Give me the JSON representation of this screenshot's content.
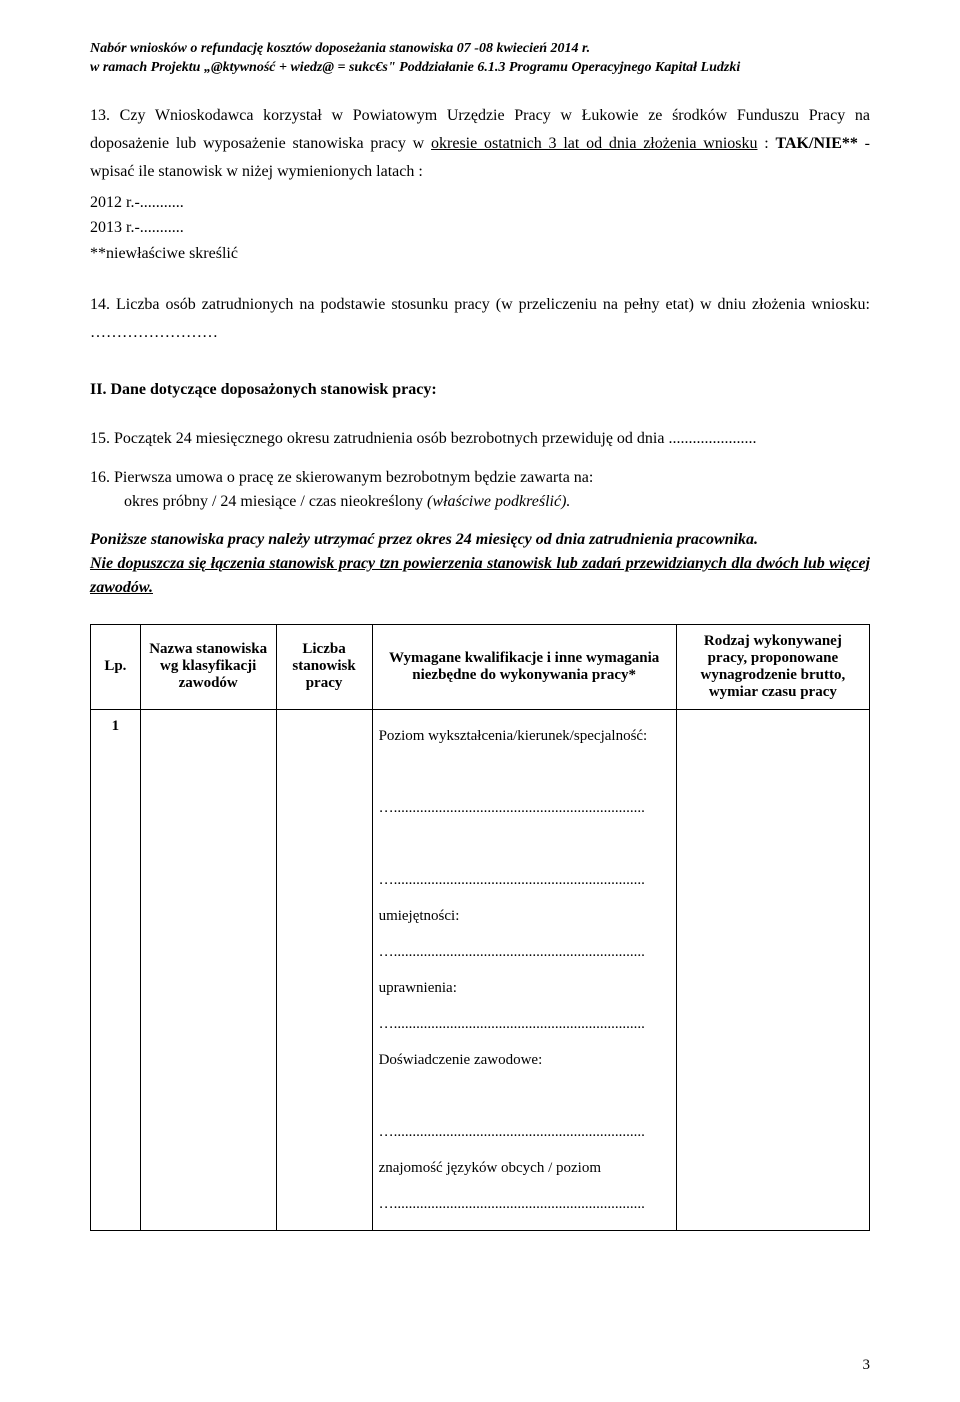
{
  "header": {
    "line1": "Nabór wniosków o refundację kosztów doposeżania stanowiska 07 -08 kwiecień 2014 r.",
    "line2": "w ramach Projektu „@ktywność + wiedz@ = sukc€s\" Poddziałanie 6.1.3 Programu Operacyjnego Kapitał Ludzki"
  },
  "p13": {
    "pre": "13. Czy Wnioskodawca korzystał w Powiatowym Urzędzie Pracy w Łukowie ze środków Funduszu Pracy na doposażenie lub wyposażenie stanowiska pracy w ",
    "u1": "okresie ostatnich 3 lat od dnia złożenia wniosku",
    "mid": " : ",
    "bold": "TAK/NIE**",
    "post": " - wpisać ile stanowisk w niżej wymienionych latach :"
  },
  "years": {
    "y1": "2012 r.-...........",
    "y2": "2013 r.-...........",
    "note": "**niewłaściwe skreślić"
  },
  "p14": "14. Liczba osób zatrudnionych na podstawie stosunku pracy (w przeliczeniu na pełny etat) w dniu złożenia wniosku: ……………………",
  "section2": "II. Dane dotyczące doposażonych stanowisk pracy:",
  "p15": "15. Początek  24 miesięcznego okresu zatrudnienia osób bezrobotnych przewiduję od dnia ......................",
  "p16": {
    "line1": "16. Pierwsza umowa o pracę ze skierowanym bezrobotnym będzie zawarta na:",
    "line2_plain": "okres próbny / 24 miesiące / czas nieokreślony ",
    "line2_ital": "(właściwe podkreślić)."
  },
  "warning": {
    "l1": "Poniższe stanowiska pracy należy utrzymać przez okres 24 miesięcy od dnia zatrudnienia pracownika.",
    "l2a": "Nie dopuszcza się łączenia stanowisk pracy tzn powierzenia stanowisk lub zadań przewidzianych dla dwóch lub więcej zawodów.",
    "l2b": ""
  },
  "table": {
    "head": {
      "lp": "Lp.",
      "nazwa": "Nazwa stanowiska wg klasyfikacji zawodów",
      "liczba": "Liczba stanowisk pracy",
      "wym": "Wymagane kwalifikacje i inne wymagania niezbędne do wykonywania pracy*",
      "rodzaj": "Rodzaj wykonywanej pracy, proponowane wynagrodzenie brutto, wymiar czasu pracy"
    },
    "row1": {
      "num": "1",
      "req": {
        "poziom": "Poziom wykształcenia/kierunek/specjalność:",
        "dots1": "…...................................................................",
        "dots2": "…...................................................................",
        "umiej": "umiejętności:",
        "dots3": "…...................................................................",
        "upraw": "uprawnienia:",
        "dots4": "…...................................................................",
        "dosw": "Doświadczenie zawodowe:",
        "dots5": "…...................................................................",
        "jezyki": "znajomość języków obcych / poziom",
        "dots6": "…..................................................................."
      }
    }
  },
  "pageNumber": "3"
}
